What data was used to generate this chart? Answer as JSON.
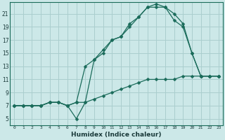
{
  "xlabel": "Humidex (Indice chaleur)",
  "bg_color": "#cce8e8",
  "grid_color": "#aacece",
  "line_color": "#1a6b5a",
  "xlim": [
    -0.5,
    23.5
  ],
  "ylim": [
    4.0,
    22.8
  ],
  "yticks": [
    5,
    7,
    9,
    11,
    13,
    15,
    17,
    19,
    21
  ],
  "xticks": [
    0,
    1,
    2,
    3,
    4,
    5,
    6,
    7,
    8,
    9,
    10,
    11,
    12,
    13,
    14,
    15,
    16,
    17,
    18,
    19,
    20,
    21,
    22,
    23
  ],
  "line1_x": [
    0,
    1,
    2,
    3,
    4,
    5,
    6,
    7,
    8,
    9,
    10,
    11,
    12,
    13,
    14,
    15,
    16,
    17,
    18,
    19,
    20,
    21,
    22,
    23
  ],
  "line1_y": [
    7,
    7,
    7,
    7,
    7.5,
    7.5,
    7,
    7.5,
    7.5,
    8,
    8.5,
    9,
    9.5,
    10,
    10.5,
    11,
    11,
    11,
    11,
    11.5,
    11.5,
    11.5,
    11.5,
    11.5
  ],
  "line2_x": [
    0,
    1,
    2,
    3,
    4,
    5,
    6,
    7,
    8,
    9,
    10,
    11,
    12,
    13,
    14,
    15,
    16,
    17,
    18,
    19,
    20,
    21,
    22,
    23
  ],
  "line2_y": [
    7,
    7,
    7,
    7,
    7.5,
    7.5,
    7,
    5,
    7.5,
    14,
    15,
    17,
    17.5,
    19,
    20.5,
    22,
    22,
    22,
    20,
    19,
    15,
    11.5,
    11.5,
    11.5
  ],
  "line3_x": [
    0,
    1,
    2,
    3,
    4,
    5,
    6,
    7,
    8,
    9,
    10,
    11,
    12,
    13,
    14,
    15,
    16,
    17,
    18,
    19,
    20,
    21,
    22,
    23
  ],
  "line3_y": [
    7,
    7,
    7,
    7,
    7.5,
    7.5,
    7,
    7.5,
    13,
    14,
    15.5,
    17,
    17.5,
    19.5,
    20.5,
    22,
    22.5,
    22,
    21,
    19.5,
    15,
    11.5,
    11.5,
    11.5
  ]
}
